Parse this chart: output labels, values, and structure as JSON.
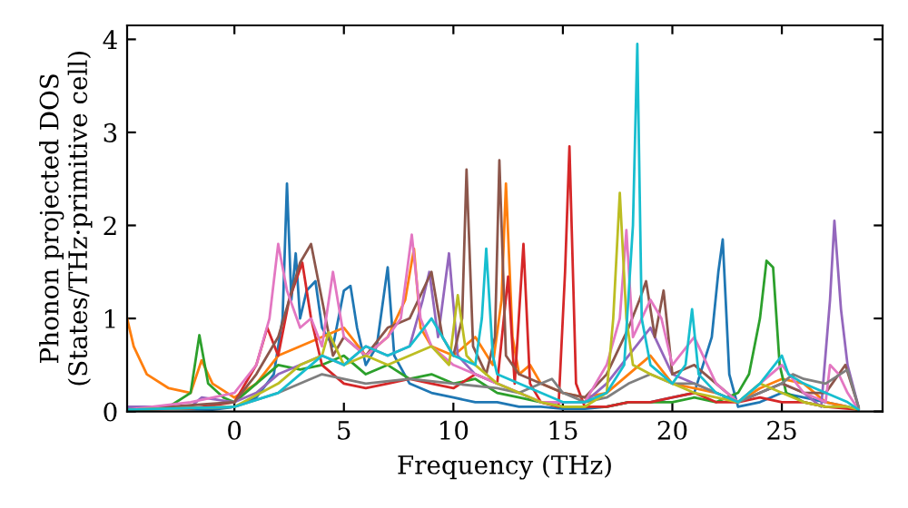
{
  "chart_data": {
    "type": "line",
    "xlabel": "Frequency (THz)",
    "ylabel": "Phonon projected DOS\n(States/THz·primitive cell)",
    "xlim": [
      -4.9,
      29.6
    ],
    "ylim": [
      0,
      4.15
    ],
    "xticks": [
      0,
      5,
      10,
      15,
      20,
      25
    ],
    "yticks": [
      0,
      1,
      2,
      3,
      4
    ],
    "grid": false,
    "legend": false,
    "marker": "none",
    "line_style": "solid",
    "series": [
      {
        "color": "#1f77b4",
        "x": [
          -4.9,
          -3,
          -1,
          0,
          1,
          1.8,
          2.2,
          2.4,
          2.6,
          2.8,
          3.0,
          3.3,
          3.7,
          4.0,
          4.5,
          5.0,
          5.3,
          5.6,
          6.0,
          6.5,
          7.0,
          7.3,
          8,
          9,
          10,
          11,
          12,
          13,
          14,
          15,
          16,
          17,
          18,
          19,
          20,
          21,
          21.8,
          22.1,
          22.3,
          22.6,
          23,
          24,
          25,
          26,
          27,
          28,
          28.5
        ],
        "values": [
          0.05,
          0.03,
          0.02,
          0.05,
          0.15,
          0.4,
          1.0,
          2.45,
          1.2,
          1.7,
          1.0,
          1.3,
          1.4,
          0.9,
          0.7,
          1.3,
          1.35,
          0.9,
          0.5,
          0.7,
          1.55,
          0.6,
          0.3,
          0.2,
          0.15,
          0.1,
          0.1,
          0.05,
          0.05,
          0.03,
          0.03,
          0.05,
          0.1,
          0.1,
          0.15,
          0.2,
          0.8,
          1.5,
          1.85,
          0.4,
          0.05,
          0.1,
          0.2,
          0.15,
          0.1,
          0.05,
          0.02
        ]
      },
      {
        "color": "#ff7f0e",
        "x": [
          -4.9,
          -4.6,
          -4,
          -3,
          -2,
          -1.5,
          -1,
          0,
          1,
          2,
          3,
          4,
          5,
          6,
          7,
          7.8,
          8.2,
          8.5,
          9,
          10,
          11,
          11.8,
          12.2,
          12.4,
          12.7,
          13,
          13.5,
          14,
          15,
          16,
          17,
          18,
          19,
          20,
          21,
          22,
          23,
          24,
          25,
          26,
          27,
          28,
          28.5
        ],
        "values": [
          1.0,
          0.7,
          0.4,
          0.25,
          0.2,
          0.55,
          0.3,
          0.15,
          0.3,
          0.6,
          0.7,
          0.8,
          0.9,
          0.6,
          0.8,
          1.2,
          1.75,
          0.9,
          0.7,
          0.6,
          0.8,
          0.5,
          1.2,
          2.45,
          0.8,
          0.4,
          0.5,
          0.3,
          0.2,
          0.15,
          0.2,
          0.4,
          0.6,
          0.3,
          0.25,
          0.2,
          0.1,
          0.25,
          0.35,
          0.3,
          0.1,
          0.05,
          0.02
        ]
      },
      {
        "color": "#2ca02c",
        "x": [
          -4.9,
          -3,
          -2,
          -1.6,
          -1.2,
          -0.5,
          0,
          1,
          2,
          3,
          4,
          5,
          6,
          7,
          8,
          9,
          10,
          11,
          12,
          13,
          14,
          15,
          16,
          17,
          18,
          19,
          20,
          21,
          22,
          23,
          23.5,
          24,
          24.3,
          24.6,
          24.9,
          25.2,
          26,
          27,
          28,
          28.5
        ],
        "values": [
          0.02,
          0.05,
          0.2,
          0.82,
          0.3,
          0.15,
          0.1,
          0.3,
          0.5,
          0.45,
          0.5,
          0.6,
          0.4,
          0.5,
          0.35,
          0.4,
          0.3,
          0.35,
          0.2,
          0.15,
          0.1,
          0.05,
          0.05,
          0.05,
          0.1,
          0.1,
          0.1,
          0.15,
          0.1,
          0.2,
          0.4,
          1.0,
          1.62,
          1.55,
          0.5,
          0.2,
          0.1,
          0.05,
          0.05,
          0.02
        ]
      },
      {
        "color": "#d62728",
        "x": [
          -4.9,
          -2,
          0,
          1,
          1.5,
          2,
          2.5,
          3.1,
          3.5,
          4,
          5,
          6,
          7,
          8,
          9,
          10,
          11,
          12,
          12.5,
          12.8,
          13.2,
          13.5,
          14,
          14.8,
          15.1,
          15.3,
          15.6,
          16,
          17,
          18,
          19,
          20,
          21,
          22,
          23,
          24,
          25,
          26,
          27,
          28.5
        ],
        "values": [
          0.02,
          0.03,
          0.1,
          0.5,
          0.9,
          0.6,
          1.2,
          1.6,
          1.0,
          0.5,
          0.3,
          0.25,
          0.3,
          0.35,
          0.3,
          0.25,
          0.4,
          0.3,
          1.45,
          0.3,
          1.8,
          0.3,
          0.1,
          0.05,
          1.5,
          2.85,
          0.3,
          0.05,
          0.05,
          0.1,
          0.1,
          0.15,
          0.2,
          0.1,
          0.1,
          0.15,
          0.1,
          0.1,
          0.05,
          0.02
        ]
      },
      {
        "color": "#9467bd",
        "x": [
          -4.9,
          -2,
          -1.5,
          0,
          1,
          2,
          3,
          4,
          5,
          6,
          7,
          8,
          8.6,
          8.9,
          9.3,
          9.8,
          10.2,
          11,
          12,
          13,
          14,
          15,
          16,
          17,
          18,
          19,
          20,
          21,
          22,
          23,
          24,
          25,
          26,
          26.8,
          27.2,
          27.4,
          27.7,
          28,
          28.5
        ],
        "values": [
          0.05,
          0.05,
          0.15,
          0.1,
          0.2,
          0.4,
          0.5,
          0.6,
          0.5,
          0.7,
          0.6,
          0.7,
          1.2,
          1.5,
          0.8,
          1.7,
          0.6,
          0.4,
          0.3,
          0.2,
          0.1,
          0.1,
          0.1,
          0.3,
          0.6,
          0.9,
          0.4,
          0.3,
          0.2,
          0.1,
          0.2,
          0.3,
          0.2,
          0.05,
          1.2,
          2.05,
          1.1,
          0.5,
          0.05
        ]
      },
      {
        "color": "#8c564b",
        "x": [
          -4.9,
          0,
          1,
          2,
          2.5,
          3,
          3.5,
          4,
          4.5,
          5,
          6,
          7,
          8,
          9,
          9.5,
          10,
          10.4,
          10.6,
          10.9,
          11.5,
          11.9,
          12.1,
          12.4,
          13,
          14,
          15,
          16,
          17,
          18,
          18.5,
          18.8,
          19.2,
          19.6,
          20,
          21,
          22,
          23,
          24,
          25,
          26,
          27,
          27.9,
          28.5
        ],
        "values": [
          0.02,
          0.1,
          0.4,
          0.8,
          1.2,
          1.6,
          1.8,
          1.2,
          0.6,
          0.8,
          0.6,
          0.9,
          1.0,
          1.5,
          0.8,
          0.6,
          1.0,
          2.6,
          0.7,
          0.4,
          0.8,
          2.7,
          0.6,
          0.4,
          0.3,
          0.2,
          0.15,
          0.4,
          0.9,
          1.2,
          1.4,
          0.8,
          1.3,
          0.4,
          0.5,
          0.3,
          0.1,
          0.2,
          0.3,
          0.2,
          0.2,
          0.5,
          0.05
        ]
      },
      {
        "color": "#e377c2",
        "x": [
          -4.9,
          -2,
          0,
          1,
          1.6,
          2.0,
          2.4,
          3,
          3.5,
          4,
          4.5,
          5,
          6,
          7,
          7.6,
          8.1,
          8.5,
          9,
          10,
          11,
          12,
          13,
          14,
          15,
          16,
          17,
          17.6,
          17.9,
          18.2,
          18.6,
          19,
          19.5,
          20,
          21,
          22,
          23,
          24,
          25,
          26,
          27,
          27.2,
          27.6,
          28,
          28.5
        ],
        "values": [
          0.02,
          0.1,
          0.2,
          0.5,
          1.0,
          1.8,
          1.3,
          0.9,
          1.0,
          0.7,
          1.5,
          0.8,
          0.6,
          0.8,
          1.0,
          1.9,
          1.0,
          0.7,
          0.5,
          0.4,
          0.3,
          0.2,
          0.1,
          0.1,
          0.1,
          0.5,
          1.0,
          1.95,
          0.8,
          1.0,
          1.2,
          1.0,
          0.5,
          0.8,
          0.3,
          0.1,
          0.3,
          0.5,
          0.2,
          0.1,
          0.5,
          0.4,
          0.2,
          0.02
        ]
      },
      {
        "color": "#7f7f7f",
        "x": [
          -4.9,
          0,
          2,
          4,
          6,
          8,
          10,
          12,
          13,
          14,
          14.5,
          15,
          16,
          17,
          18,
          19,
          20,
          21,
          22,
          23,
          24,
          25,
          25.5,
          26,
          27,
          28,
          28.5
        ],
        "values": [
          0.02,
          0.05,
          0.2,
          0.4,
          0.3,
          0.35,
          0.3,
          0.25,
          0.2,
          0.3,
          0.35,
          0.2,
          0.1,
          0.15,
          0.3,
          0.4,
          0.3,
          0.3,
          0.2,
          0.1,
          0.2,
          0.3,
          0.4,
          0.35,
          0.3,
          0.45,
          0.05
        ]
      },
      {
        "color": "#bcbd22",
        "x": [
          -4.9,
          0,
          2,
          3,
          4,
          4.3,
          5,
          6,
          7,
          8,
          9,
          9.8,
          10.2,
          10.6,
          11,
          12,
          13,
          14,
          15,
          16,
          17,
          17.3,
          17.6,
          17.9,
          18.2,
          19,
          20,
          21,
          22,
          23,
          24,
          25,
          26,
          27,
          28,
          28.5
        ],
        "values": [
          0.02,
          0.05,
          0.3,
          0.5,
          0.6,
          0.85,
          0.5,
          0.6,
          0.5,
          0.6,
          0.7,
          0.5,
          1.25,
          0.6,
          0.5,
          0.3,
          0.2,
          0.1,
          0.05,
          0.05,
          0.2,
          1.0,
          2.35,
          1.0,
          0.5,
          0.4,
          0.3,
          0.2,
          0.15,
          0.1,
          0.3,
          0.2,
          0.1,
          0.05,
          0.05,
          0.02
        ]
      },
      {
        "color": "#17becf",
        "x": [
          -4.9,
          0,
          2,
          3,
          4,
          5,
          6,
          7,
          8,
          9,
          10,
          11,
          11.3,
          11.5,
          11.8,
          12,
          13,
          14,
          15,
          16,
          17,
          17.8,
          18.2,
          18.4,
          18.6,
          19,
          20,
          20.6,
          20.9,
          21.2,
          22,
          23,
          24,
          25,
          25.3,
          26,
          27,
          28,
          28.5
        ],
        "values": [
          0.02,
          0.05,
          0.2,
          0.4,
          0.6,
          0.5,
          0.7,
          0.6,
          0.7,
          1.0,
          0.6,
          0.5,
          1.0,
          1.75,
          0.6,
          0.4,
          0.3,
          0.2,
          0.1,
          0.1,
          0.2,
          0.5,
          2.0,
          3.95,
          1.0,
          0.5,
          0.3,
          0.5,
          1.1,
          0.4,
          0.2,
          0.1,
          0.3,
          0.6,
          0.4,
          0.3,
          0.2,
          0.1,
          0.02
        ]
      }
    ]
  }
}
